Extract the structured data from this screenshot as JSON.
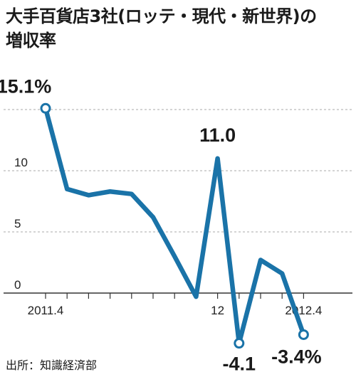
{
  "header": {
    "title_line1": "大手百貨店3社(ロッテ・現代・新世界)の",
    "title_line2": "増収率"
  },
  "footer": {
    "source": "出所：知識経済部"
  },
  "colors": {
    "line": "#1a73a8",
    "grid": "#aaaaaa",
    "axis": "#333333"
  },
  "chart_data": {
    "type": "line",
    "title": "大手百貨店3社(ロッテ・現代・新世界)の増収率",
    "ylim": [
      -5,
      16
    ],
    "yticks": [
      "10",
      "5",
      "0"
    ],
    "xtick_labels": [
      {
        "index": 0,
        "text": "2011.4"
      },
      {
        "index": 8,
        "text": "12"
      },
      {
        "index": 12,
        "text": "2012.4"
      }
    ],
    "x": [
      "2011.4",
      "2011.5",
      "2011.6",
      "2011.7",
      "2011.8",
      "2011.9",
      "2011.10",
      "2011.11",
      "2011.12",
      "2012.1",
      "2012.2",
      "2012.3",
      "2012.4"
    ],
    "series": [
      {
        "values": [
          15.1,
          8.5,
          8.0,
          8.3,
          8.1,
          6.2,
          3.0,
          -0.3,
          11.0,
          -4.1,
          2.7,
          1.6,
          -3.4
        ]
      }
    ],
    "data_labels": [
      {
        "index": 0,
        "text": "15.1%"
      },
      {
        "index": 8,
        "text": "11.0"
      },
      {
        "index": 9,
        "text": "-4.1"
      },
      {
        "index": 12,
        "text": "-3.4%"
      }
    ],
    "markers_at": [
      0,
      9,
      12
    ],
    "grid": true
  }
}
